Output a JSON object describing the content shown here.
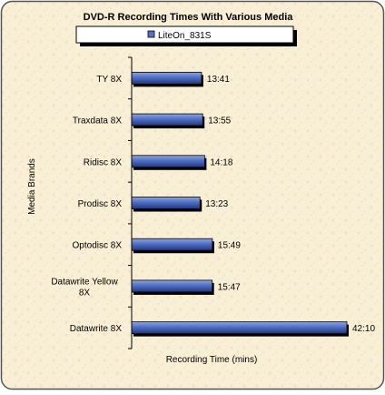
{
  "chart_data": {
    "type": "bar",
    "orientation": "horizontal",
    "title": "DVD-R Recording Times With Various Media",
    "xlabel": "Recording Time (mins)",
    "ylabel": "Media Brands",
    "legend": {
      "position": "top",
      "entries": [
        "LiteOn_831S"
      ]
    },
    "categories": [
      "TY 8X",
      "Traxdata 8X",
      "Ridisc 8X",
      "Prodisc 8X",
      "Optodisc 8X",
      "Datawrite Yellow 8X",
      "Datawrite 8X"
    ],
    "series": [
      {
        "name": "LiteOn_831S",
        "values": [
          13.683,
          13.917,
          14.3,
          13.383,
          15.817,
          15.783,
          42.167
        ],
        "labels": [
          "13:41",
          "13:55",
          "14:18",
          "13:23",
          "15:49",
          "15:47",
          "42:10"
        ]
      }
    ],
    "xlim": [
      0,
      42.167
    ],
    "grid": false,
    "colors": {
      "bar_top": "#8fa6de",
      "bar_mid": "#4f6fc4",
      "bar_bottom": "#24357d",
      "bar_outline": "#000000",
      "background": "#f7edd2",
      "legend_swatch": "#5572c8"
    }
  }
}
